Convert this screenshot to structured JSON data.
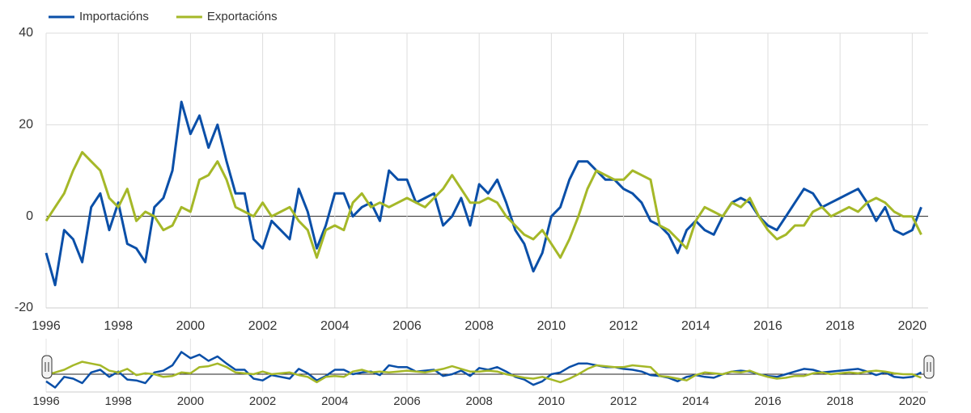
{
  "chart_data": {
    "type": "line",
    "x": [
      1996,
      1996.25,
      1996.5,
      1996.75,
      1997,
      1997.25,
      1997.5,
      1997.75,
      1998,
      1998.25,
      1998.5,
      1998.75,
      1999,
      1999.25,
      1999.5,
      1999.75,
      2000,
      2000.25,
      2000.5,
      2000.75,
      2001,
      2001.25,
      2001.5,
      2001.75,
      2002,
      2002.25,
      2002.5,
      2002.75,
      2003,
      2003.25,
      2003.5,
      2003.75,
      2004,
      2004.25,
      2004.5,
      2004.75,
      2005,
      2005.25,
      2005.5,
      2005.75,
      2006,
      2006.25,
      2006.5,
      2006.75,
      2007,
      2007.25,
      2007.5,
      2007.75,
      2008,
      2008.25,
      2008.5,
      2008.75,
      2009,
      2009.25,
      2009.5,
      2009.75,
      2010,
      2010.25,
      2010.5,
      2010.75,
      2011,
      2011.25,
      2011.5,
      2011.75,
      2012,
      2012.25,
      2012.5,
      2012.75,
      2013,
      2013.25,
      2013.5,
      2013.75,
      2014,
      2014.25,
      2014.5,
      2014.75,
      2015,
      2015.25,
      2015.5,
      2015.75,
      2016,
      2016.25,
      2016.5,
      2016.75,
      2017,
      2017.25,
      2017.5,
      2017.75,
      2018,
      2018.25,
      2018.5,
      2018.75,
      2019,
      2019.25,
      2019.5,
      2019.75,
      2020,
      2020.25
    ],
    "series": [
      {
        "name": "Importacións",
        "color": "#0a4fa8",
        "values": [
          -8,
          -15,
          -3,
          -5,
          -10,
          2,
          5,
          -3,
          3,
          -6,
          -7,
          -10,
          2,
          4,
          10,
          25,
          18,
          22,
          15,
          20,
          12,
          5,
          5,
          -5,
          -7,
          -1,
          -3,
          -5,
          6,
          1,
          -7,
          -2,
          5,
          5,
          0,
          2,
          3,
          -1,
          10,
          8,
          8,
          3,
          4,
          5,
          -2,
          0,
          4,
          -2,
          7,
          5,
          8,
          3,
          -3,
          -6,
          -12,
          -8,
          0,
          2,
          8,
          12,
          12,
          10,
          8,
          8,
          6,
          5,
          3,
          -1,
          -2,
          -4,
          -8,
          -3,
          -1,
          -3,
          -4,
          0,
          3,
          4,
          3,
          0,
          -2,
          -3,
          0,
          3,
          6,
          5,
          2,
          3,
          4,
          5,
          6,
          3,
          -1,
          2,
          -3,
          -4,
          -3,
          2
        ]
      },
      {
        "name": "Exportacións",
        "color": "#a5b828",
        "values": [
          -1,
          2,
          5,
          10,
          14,
          12,
          10,
          4,
          2,
          6,
          -1,
          1,
          0,
          -3,
          -2,
          2,
          1,
          8,
          9,
          12,
          8,
          2,
          1,
          0,
          3,
          0,
          1,
          2,
          -1,
          -3,
          -9,
          -3,
          -2,
          -3,
          3,
          5,
          2,
          3,
          2,
          3,
          4,
          3,
          2,
          4,
          6,
          9,
          6,
          3,
          3,
          4,
          3,
          0,
          -2,
          -4,
          -5,
          -3,
          -6,
          -9,
          -5,
          0,
          6,
          10,
          9,
          8,
          8,
          10,
          9,
          8,
          -2,
          -3,
          -5,
          -7,
          -1,
          2,
          1,
          0,
          3,
          2,
          4,
          0,
          -3,
          -5,
          -4,
          -2,
          -2,
          1,
          2,
          0,
          1,
          2,
          1,
          3,
          4,
          3,
          1,
          0,
          0,
          -4
        ]
      }
    ],
    "xlim": [
      1996,
      2020.44
    ],
    "xticks": [
      1996,
      1998,
      2000,
      2002,
      2004,
      2006,
      2008,
      2010,
      2012,
      2014,
      2016,
      2018,
      2020
    ],
    "ylim": [
      -20,
      40
    ],
    "yticks": [
      -20,
      0,
      20,
      40
    ],
    "grid": true,
    "legend": "top-left"
  }
}
